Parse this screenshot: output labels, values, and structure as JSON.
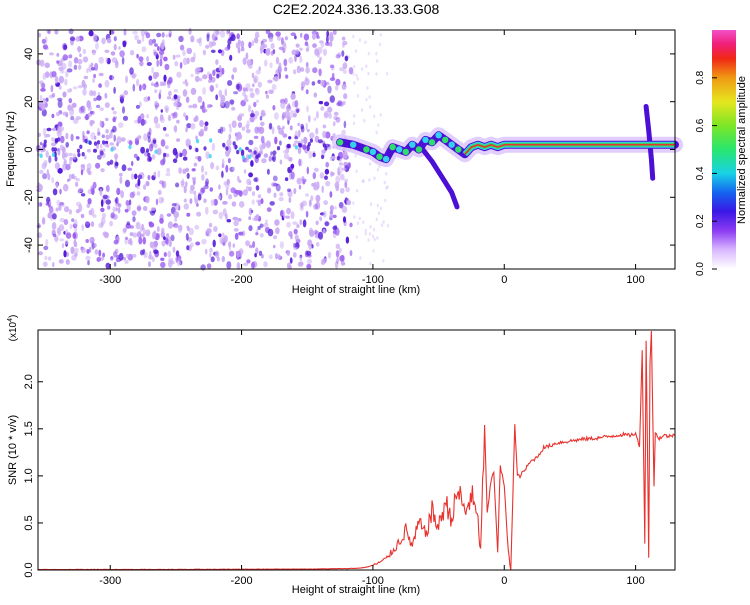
{
  "figure": {
    "title": "C2E2.2024.336.13.33.G08"
  },
  "colors": {
    "snr_line": "#e8322e",
    "spec_base": "#c9a8f3",
    "spec_dark": "#4b0fd6",
    "ridge_core": "#e8322e",
    "ridge_glow": "#2ee06a",
    "ridge_edge": "#34d0f0"
  },
  "chart_data": [
    {
      "type": "heatmap",
      "name": "spectrogram",
      "xlabel": "Height of straight line (km)",
      "ylabel": "Frequency (Hz)",
      "xlim": [
        -355,
        130
      ],
      "ylim": [
        -50,
        50
      ],
      "xticks": [
        -300,
        -200,
        -100,
        0,
        100
      ],
      "xtick_labels": [
        "-300",
        "-200",
        "-100",
        "0",
        "100"
      ],
      "yticks": [
        -40,
        -20,
        0,
        20,
        40
      ],
      "ytick_labels": [
        "-40",
        "-20",
        "0",
        "20",
        "40"
      ],
      "grid": false,
      "noise_region": [
        -355,
        -115
      ],
      "ridge": {
        "x": [
          -125,
          -115,
          -105,
          -100,
          -95,
          -90,
          -85,
          -80,
          -75,
          -70,
          -65,
          -60,
          -55,
          -50,
          -45,
          -40,
          -35,
          -30,
          -25,
          -20,
          -15,
          -10,
          -5,
          0,
          10,
          20,
          40,
          60,
          80,
          100,
          110,
          120,
          130
        ],
        "y": [
          3,
          2,
          0,
          -1,
          -3,
          -4,
          1,
          0,
          -1,
          2,
          0,
          4,
          3,
          6,
          4,
          2,
          0,
          -2,
          1,
          2,
          1,
          2,
          1,
          2,
          2,
          2,
          2,
          2,
          2,
          2,
          2,
          2,
          2
        ]
      },
      "branches": [
        {
          "x": [
            -62,
            -55,
            -48,
            -40,
            -36
          ],
          "y": [
            0,
            -5,
            -11,
            -18,
            -24
          ]
        },
        {
          "x": [
            108,
            110,
            112,
            113
          ],
          "y": [
            18,
            8,
            -4,
            -12
          ]
        }
      ],
      "colorbar": {
        "label": "Normalized spectral amplitude",
        "ticks": [
          0.0,
          0.2,
          0.4,
          0.6,
          0.8
        ],
        "tick_labels": [
          "0.0",
          "0.2",
          "0.4",
          "0.6",
          "0.8"
        ],
        "range": [
          0,
          1
        ]
      }
    },
    {
      "type": "line",
      "name": "snr",
      "xlabel": "Height of straight line (km)",
      "ylabel": "SNR (10 * v/v)",
      "y_multiplier": "(x10",
      "y_multiplier_exp": "4",
      "y_multiplier_close": ")",
      "xlim": [
        -355,
        130
      ],
      "ylim": [
        0,
        2.55
      ],
      "xticks": [
        -300,
        -200,
        -100,
        0,
        100
      ],
      "xtick_labels": [
        "-300",
        "-200",
        "-100",
        "0",
        "100"
      ],
      "yticks": [
        0,
        0.5,
        1.0,
        1.5,
        2.0
      ],
      "ytick_labels": [
        "0.0",
        "0.5",
        "1.0",
        "1.5",
        "2.0"
      ],
      "grid": false,
      "series": [
        {
          "x": [
            -355,
            -300,
            -250,
            -200,
            -150,
            -120,
            -110,
            -105,
            -100,
            -95,
            -90,
            -85,
            -80,
            -75,
            -70,
            -65,
            -60,
            -55,
            -50,
            -45,
            -40,
            -35,
            -30,
            -25,
            -20,
            -18,
            -15,
            -13,
            -10,
            -8,
            -5,
            -3,
            0,
            3,
            5,
            8,
            10,
            12,
            15,
            20,
            25,
            30,
            35,
            40,
            50,
            60,
            70,
            80,
            90,
            95,
            100,
            103,
            105,
            107,
            108,
            110,
            111,
            112,
            114,
            115,
            118,
            122,
            126,
            130
          ],
          "y": [
            0.005,
            0.006,
            0.006,
            0.008,
            0.01,
            0.015,
            0.02,
            0.03,
            0.05,
            0.08,
            0.12,
            0.2,
            0.3,
            0.42,
            0.25,
            0.5,
            0.38,
            0.62,
            0.45,
            0.72,
            0.55,
            0.85,
            0.6,
            0.8,
            0.5,
            0.2,
            1.55,
            0.6,
            0.95,
            1.05,
            0.2,
            1.1,
            0.9,
            0.2,
            0.0,
            1.55,
            1.0,
            1.0,
            1.05,
            1.15,
            1.2,
            1.3,
            1.32,
            1.35,
            1.37,
            1.39,
            1.4,
            1.42,
            1.44,
            1.43,
            1.45,
            1.3,
            2.35,
            0.3,
            2.45,
            0.15,
            2.2,
            2.55,
            0.9,
            1.45,
            1.4,
            1.43,
            1.42,
            1.44
          ]
        }
      ]
    }
  ]
}
